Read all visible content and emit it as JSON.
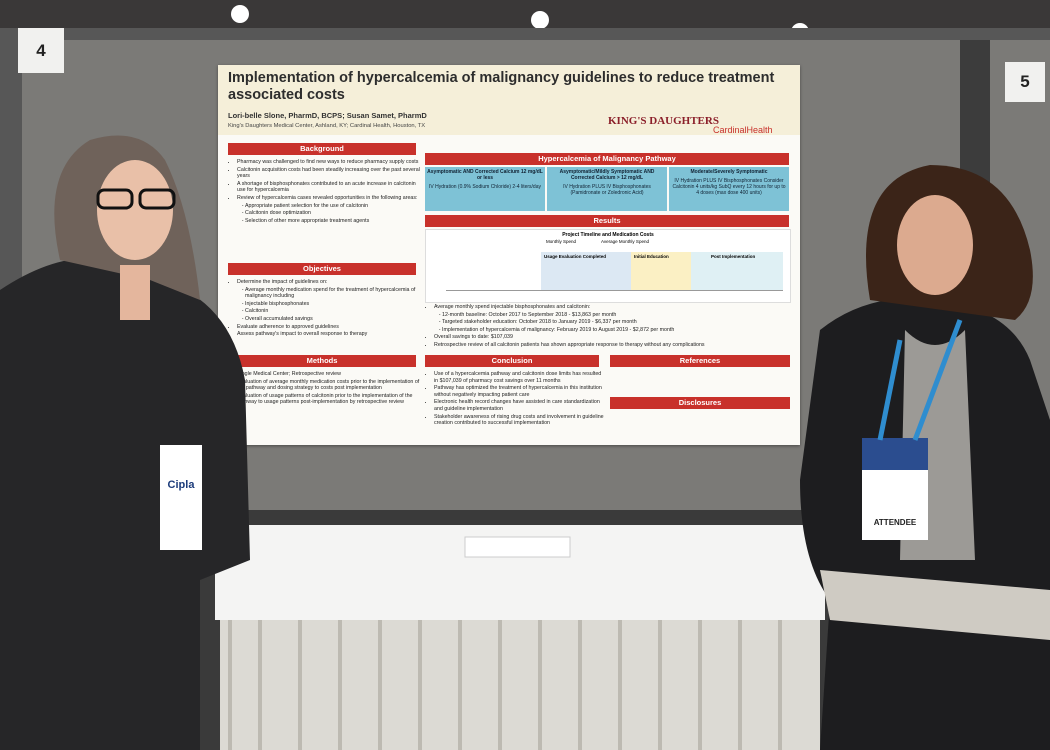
{
  "booth_numbers": [
    "4",
    "5"
  ],
  "poster": {
    "title": "Implementation of hypercalcemia of malignancy guidelines to reduce treatment associated costs",
    "authors": "Lori-belle Slone, PharmD, BCPS; Susan Samet, PharmD",
    "affiliation": "King's Daughters Medical Center, Ashland, KY; Cardinal Health, Houston, TX",
    "logos": [
      "KING'S DAUGHTERS",
      "CardinalHealth"
    ],
    "background": {
      "heading": "Background",
      "items": [
        "Pharmacy was challenged to find new ways to reduce pharmacy supply costs",
        "Calcitonin acquisition costs had been steadily increasing over the past several years",
        "A shortage of bisphosphonates contributed to an acute increase in calcitonin use for hypercalcemia",
        "Review of hypercalcemia cases revealed opportunities in the following areas:",
        "Appropriate patient selection for the use of calcitonin",
        "Calcitonin dose optimization",
        "Selection of other more appropriate treatment agents"
      ]
    },
    "objectives": {
      "heading": "Objectives",
      "items": [
        "Determine the impact of guidelines on:",
        "Average monthly medication spend for the treatment of hypercalcemia of malignancy including",
        "Injectable bisphosphonates",
        "Calcitonin",
        "Overall accumulated savings",
        "Evaluate adherence to approved guidelines",
        "Assess pathway's impact to overall response to therapy"
      ]
    },
    "methods": {
      "heading": "Methods",
      "items": [
        "Single Medical Center; Retrospective review",
        "Evaluation of average monthly medication costs prior to the implementation of the pathway and dosing strategy to costs post implementation",
        "Evaluation of usage patterns of calcitonin prior to the implementation of the pathway to usage patterns post-implementation by retrospective review"
      ]
    },
    "pathway": {
      "heading": "Hypercalcemia of Malignancy Pathway",
      "columns": [
        {
          "title": "Asymptomatic AND Corrected Calcium 12 mg/dL or less",
          "text": "IV Hydration (0.9% Sodium Chloride) 2-4 liters/day"
        },
        {
          "title": "Asymptomatic/Mildly Symptomatic AND Corrected Calcium > 12 mg/dL",
          "text": "IV Hydration PLUS IV Bisphosphonates (Pamidronate or Zoledronic Acid)"
        },
        {
          "title": "Moderate/Severely Symptomatic",
          "text": "IV Hydration PLUS IV Bisphosphonates Consider Calcitonin 4 units/kg SubQ every 12 hours for up to 4 doses (max dose 400 units)"
        }
      ]
    },
    "results": {
      "heading": "Results",
      "chart_title": "Project Timeline and Medication Costs",
      "legend": [
        "Monthly Spend",
        "Average Monthly Spend"
      ],
      "phases": [
        "Usage Evaluation Completed",
        "Initial Education",
        "Post Implementation"
      ],
      "items": [
        "Average monthly spend injectable bisphosphonates and calcitonin:",
        "12-month baseline: October 2017 to September 2018 - $13,863 per month",
        "Targeted stakeholder education: October 2018 to January 2019 - $6,337 per month",
        "Implementation of hypercalcemia of malignancy: February 2019 to August 2019 - $2,872 per month",
        "Overall savings to date: $107,039",
        "Retrospective review of all calcitonin patients has shown appropriate response to therapy without any complications"
      ]
    },
    "conclusion": {
      "heading": "Conclusion",
      "items": [
        "Use of a hypercalcemia pathway and calcitonin dose limits has resulted in $107,039 of pharmacy cost savings over 11 months",
        "Pathway has optimized the treatment of hypercalcemia in this institution without negatively impacting patient care",
        "Electronic health record changes have assisted in care standardization and guideline implementation",
        "Stakeholder awareness of rising drug costs and involvement in guideline creation contributed to successful implementation"
      ]
    },
    "references": {
      "heading": "References"
    },
    "disclosures": {
      "heading": "Disclosures"
    }
  },
  "badges": [
    "Cipla",
    "ATTENDEE"
  ]
}
